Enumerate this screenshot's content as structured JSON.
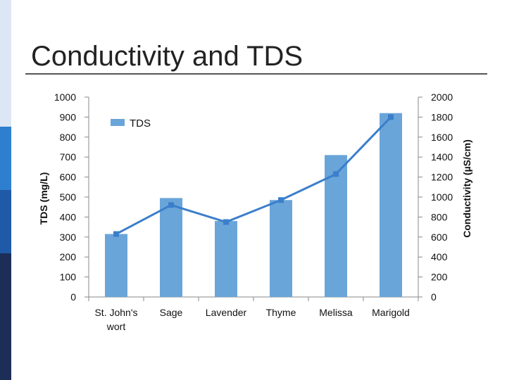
{
  "slide": {
    "title": "Conductivity and TDS"
  },
  "chart_data": {
    "type": "bar",
    "title": "Conductivity and TDS",
    "categories": [
      "St. John's wort",
      "Sage",
      "Lavender",
      "Thyme",
      "Melissa",
      "Marigold"
    ],
    "category_lines": [
      [
        "St. John's",
        "wort"
      ],
      [
        "Sage"
      ],
      [
        "Lavender"
      ],
      [
        "Thyme"
      ],
      [
        "Melissa"
      ],
      [
        "Marigold"
      ]
    ],
    "series": [
      {
        "name": "TDS",
        "kind": "bar",
        "axis": "left",
        "values": [
          315,
          495,
          380,
          485,
          710,
          920
        ]
      },
      {
        "name": "Conductivity",
        "kind": "line",
        "axis": "right",
        "values": [
          630,
          920,
          750,
          970,
          1230,
          1800
        ]
      }
    ],
    "ylabel": "TDS (mg/L)",
    "y2label": "Conductivity (µS/cm)",
    "ylim": [
      0,
      1000
    ],
    "y2lim": [
      0,
      2000
    ],
    "yticks": [
      "0",
      "100",
      "200",
      "300",
      "400",
      "500",
      "600",
      "700",
      "800",
      "900",
      "1000"
    ],
    "y2ticks": [
      "0",
      "200",
      "400",
      "600",
      "800",
      "1000",
      "1200",
      "1400",
      "1600",
      "1800",
      "2000"
    ],
    "legend": {
      "label": "TDS",
      "placement": "top-left"
    },
    "colors": {
      "bar": "#6aa5d9",
      "line": "#3b7ecb",
      "axis": "#888888"
    }
  }
}
